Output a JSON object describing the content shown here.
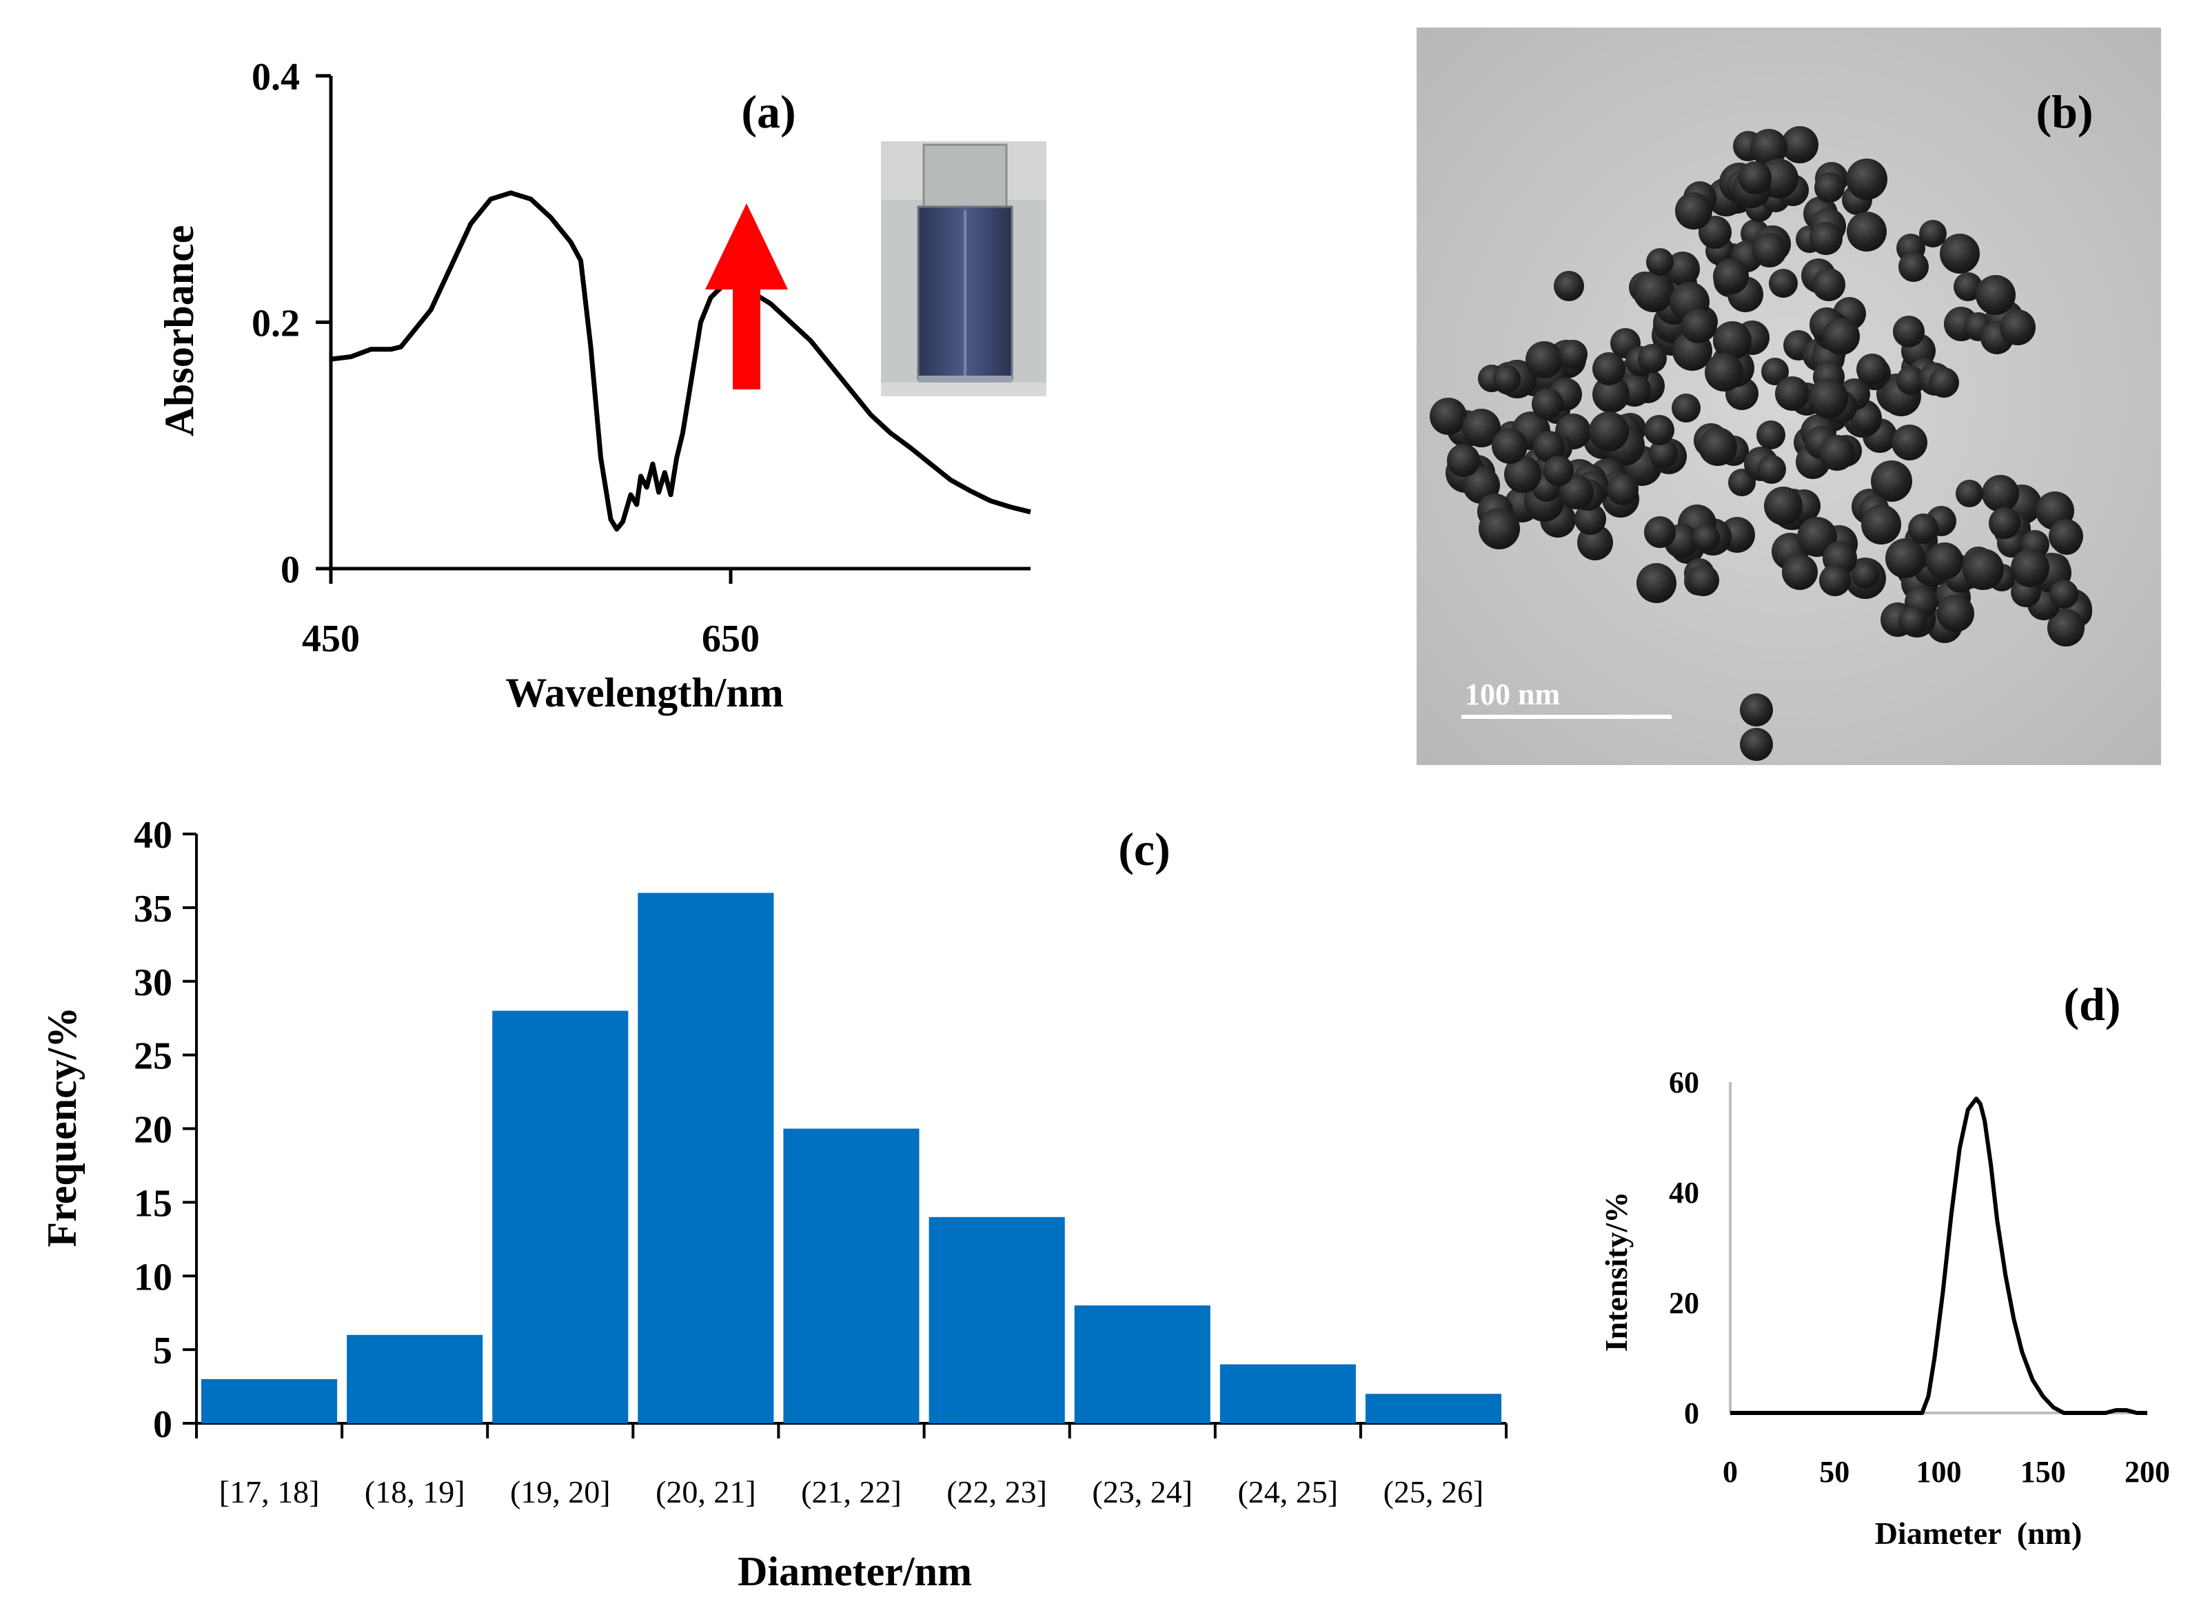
{
  "panel_labels": {
    "a": "(a)",
    "b": "(b)",
    "c": "(c)",
    "d": "(d)"
  },
  "colors": {
    "bar": "#0070C0",
    "arrow": "#FF0000",
    "line": "#000000"
  },
  "tem_image": {
    "scale_bar_label": "100 nm"
  },
  "chart_data": [
    {
      "id": "a",
      "type": "line",
      "title": "",
      "xlabel": "Wavelength/nm",
      "ylabel": "Absorbance",
      "xlim": [
        450,
        800
      ],
      "ylim": [
        0,
        0.4
      ],
      "xticks": [
        450,
        650
      ],
      "xtick_labels": [
        "450",
        "650"
      ],
      "yticks": [
        0,
        0.2,
        0.4
      ],
      "ytick_labels": [
        "0",
        "0.2",
        "0.4"
      ],
      "series": [
        {
          "name": "absorbance",
          "x": [
            450,
            460,
            470,
            480,
            485,
            490,
            500,
            510,
            520,
            530,
            540,
            550,
            560,
            570,
            575,
            580,
            585,
            590,
            593,
            596,
            600,
            603,
            605,
            608,
            611,
            614,
            617,
            620,
            623,
            626,
            629,
            632,
            635,
            640,
            645,
            650,
            660,
            670,
            680,
            690,
            700,
            710,
            720,
            730,
            740,
            750,
            760,
            770,
            780,
            790,
            800
          ],
          "y": [
            0.17,
            0.172,
            0.178,
            0.178,
            0.18,
            0.19,
            0.21,
            0.245,
            0.28,
            0.3,
            0.305,
            0.3,
            0.285,
            0.265,
            0.25,
            0.18,
            0.09,
            0.04,
            0.032,
            0.038,
            0.06,
            0.052,
            0.075,
            0.066,
            0.085,
            0.062,
            0.078,
            0.06,
            0.09,
            0.11,
            0.14,
            0.17,
            0.2,
            0.22,
            0.228,
            0.232,
            0.225,
            0.215,
            0.2,
            0.185,
            0.165,
            0.145,
            0.125,
            0.11,
            0.098,
            0.085,
            0.072,
            0.063,
            0.055,
            0.05,
            0.046
          ]
        }
      ],
      "annotations": [
        "red upward arrow near 650 nm peak",
        "inset photo of blue colloid vial"
      ]
    },
    {
      "id": "c",
      "type": "bar",
      "title": "",
      "xlabel": "Diameter/nm",
      "ylabel": "Frequency/%",
      "ylim": [
        0,
        40
      ],
      "yticks": [
        0,
        5,
        10,
        15,
        20,
        25,
        30,
        35,
        40
      ],
      "categories": [
        "[17, 18]",
        "(18, 19]",
        "(19, 20]",
        "(20, 21]",
        "(21, 22]",
        "(22, 23]",
        "(23, 24]",
        "(24, 25]",
        "(25, 26]"
      ],
      "values": [
        3,
        6,
        28,
        36,
        20,
        14,
        8,
        4,
        2
      ]
    },
    {
      "id": "d",
      "type": "line",
      "title": "",
      "xlabel": "Diameter  (nm)",
      "ylabel": "Intensity/%",
      "xlim": [
        0,
        200
      ],
      "ylim": [
        0,
        60
      ],
      "xticks": [
        0,
        50,
        100,
        150,
        200
      ],
      "yticks": [
        0,
        20,
        40,
        60
      ],
      "series": [
        {
          "name": "intensity",
          "x": [
            0,
            80,
            92,
            95,
            98,
            102,
            106,
            110,
            114,
            118,
            120,
            122,
            125,
            128,
            132,
            136,
            140,
            145,
            150,
            155,
            160,
            163,
            170,
            180,
            185,
            190,
            195,
            200
          ],
          "y": [
            0,
            0,
            0,
            3,
            10,
            22,
            36,
            48,
            55,
            57,
            56,
            53,
            45,
            35,
            25,
            17,
            11,
            6,
            3,
            1,
            0,
            0,
            0,
            0,
            0.5,
            0.5,
            0,
            0
          ]
        }
      ]
    }
  ]
}
